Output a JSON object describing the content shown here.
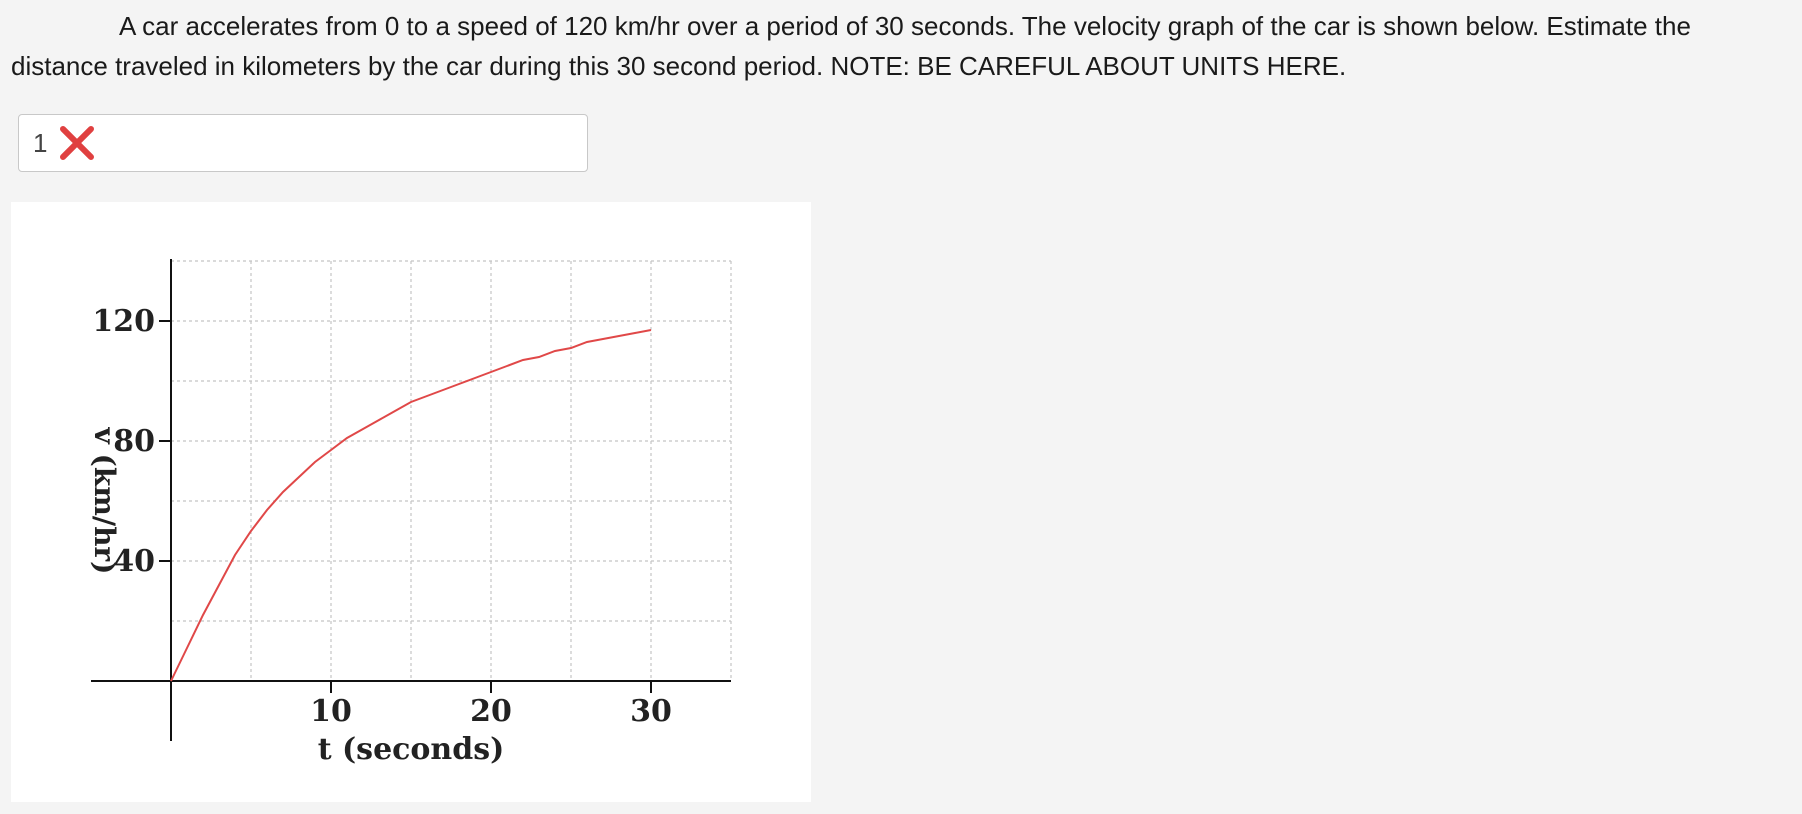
{
  "question": {
    "text": "A car accelerates from 0 to a speed of 120 km/hr over a period of 30 seconds. The velocity graph of the car is shown below. Estimate the distance traveled in kilometers by the car during this 30 second period. NOTE: BE CAREFUL ABOUT UNITS HERE."
  },
  "answer": {
    "value": "1",
    "status_icon": "x-mark-icon",
    "status_color": "#e04040"
  },
  "chart_data": {
    "type": "line",
    "xlabel": "t (seconds)",
    "ylabel": "v (km/hr)",
    "xlim": [
      0,
      35
    ],
    "ylim": [
      -20,
      140
    ],
    "x_ticks": [
      10,
      20,
      30
    ],
    "y_ticks": [
      40,
      80,
      120
    ],
    "x_grid": [
      5,
      10,
      15,
      20,
      25,
      30,
      35
    ],
    "y_grid": [
      20,
      40,
      60,
      80,
      100,
      120,
      140
    ],
    "grid": true,
    "line_color": "#e04848",
    "series": [
      {
        "x": [
          0,
          1,
          2,
          3,
          4,
          5,
          6,
          7,
          8,
          9,
          10,
          11,
          12,
          13,
          14,
          15,
          16,
          17,
          18,
          19,
          20,
          21,
          22,
          23,
          24,
          25,
          26,
          27,
          28,
          29,
          30
        ],
        "values": [
          0,
          11,
          22,
          32,
          42,
          50,
          57,
          63,
          68,
          73,
          77,
          81,
          84,
          87,
          90,
          93,
          95,
          97,
          99,
          101,
          103,
          105,
          107,
          108,
          110,
          111,
          113,
          114,
          115,
          116,
          117
        ]
      }
    ]
  }
}
